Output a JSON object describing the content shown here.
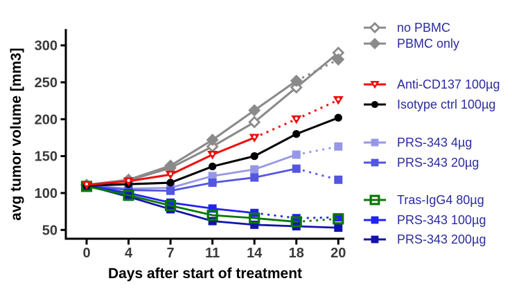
{
  "chart_data": {
    "type": "line",
    "title": "",
    "xlabel": "Days after start of treatment",
    "ylabel": "avg tumor volume [mm3]",
    "x": [
      0,
      4,
      7,
      11,
      14,
      18,
      20
    ],
    "x_spacing": "categorical-equal",
    "yticks": [
      50,
      100,
      150,
      200,
      250,
      300
    ],
    "ylim": [
      50,
      300
    ],
    "grid": false,
    "legend_position": "right",
    "legend_text_color": "#2B2BA0",
    "axis_color": "#000000",
    "series": [
      {
        "name": "no PBMC",
        "color": "#8A8A8A",
        "marker": "diamond-open",
        "line": "solid-then-dash",
        "dash_from": null,
        "values": [
          111,
          117,
          134,
          163,
          196,
          243,
          290
        ]
      },
      {
        "name": "PBMC only",
        "color": "#8A8A8A",
        "marker": "diamond-filled",
        "line": "solid-then-dash",
        "dash_from": 5,
        "values": [
          111,
          118,
          137,
          172,
          212,
          252,
          281
        ]
      },
      {
        "name": "Anti-CD137 100µg",
        "color": "#EE0E0E",
        "marker": "triangle-down",
        "line": "solid-then-dash",
        "dash_from": 4,
        "values": [
          111,
          116,
          125,
          152,
          175,
          200,
          226
        ]
      },
      {
        "name": "Isotype ctrl 100µg",
        "color": "#000000",
        "marker": "circle-filled",
        "line": "solid-then-dash",
        "dash_from": null,
        "values": [
          110,
          112,
          114,
          136,
          150,
          180,
          202
        ]
      },
      {
        "name": "PRS-343 4µg",
        "color": "#9697E7",
        "marker": "square-filled",
        "line": "solid-then-dash",
        "dash_from": 5,
        "values": [
          110,
          106,
          107,
          123,
          132,
          152,
          163
        ]
      },
      {
        "name": "PRS-343 20µg",
        "color": "#5356DE",
        "marker": "square-filled",
        "line": "solid-then-dash",
        "dash_from": 5,
        "values": [
          110,
          104,
          103,
          114,
          121,
          133,
          118
        ]
      },
      {
        "name": "Tras-IgG4 80µg",
        "color": "#067806",
        "marker": "square-open",
        "line": "solid-then-dash",
        "dash_from": 5,
        "values": [
          109,
          97,
          83,
          70,
          66,
          61,
          65
        ]
      },
      {
        "name": "PRS-343 100µg",
        "color": "#2222F5",
        "marker": "square-filled",
        "line": "solid-then-dash",
        "dash_from": 4,
        "values": [
          110,
          100,
          87,
          79,
          73,
          66,
          67
        ]
      },
      {
        "name": "PRS-343 200µg",
        "color": "#1213AC",
        "marker": "square-filled",
        "line": "solid-then-dash",
        "dash_from": null,
        "values": [
          110,
          95,
          78,
          62,
          57,
          55,
          53
        ]
      }
    ]
  }
}
